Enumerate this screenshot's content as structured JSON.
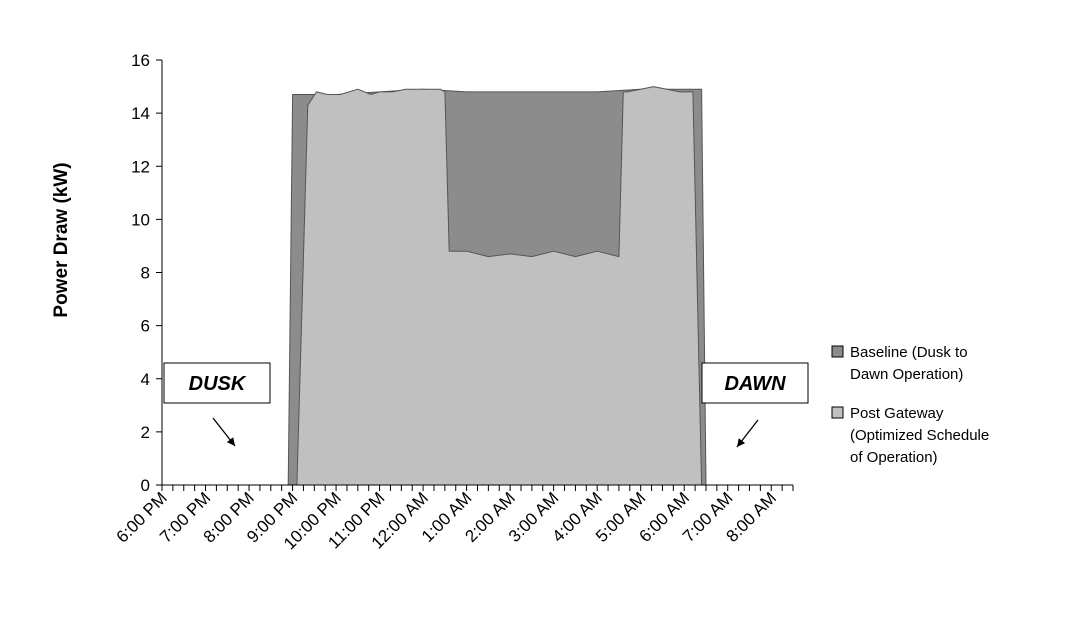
{
  "chart_data": {
    "type": "area",
    "title": "",
    "xlabel": "",
    "ylabel": "Power Draw (kW)",
    "ylim": [
      0,
      16
    ],
    "yticks": [
      0,
      2,
      4,
      6,
      8,
      10,
      12,
      14,
      16
    ],
    "x_tick_labels": [
      "6:00 PM",
      "7:00 PM",
      "8:00 PM",
      "9:00 PM",
      "10:00 PM",
      "11:00 PM",
      "12:00 AM",
      "1:00 AM",
      "2:00 AM",
      "3:00 AM",
      "4:00 AM",
      "5:00 AM",
      "6:00 AM",
      "7:00 AM",
      "8:00 AM"
    ],
    "x_unit": "hours after 6:00 PM",
    "xlim": [
      0,
      14.5
    ],
    "legend_position": "right",
    "grid": false,
    "series": [
      {
        "name": "Baseline (Dusk to Dawn Operation)",
        "color": "#8c8c8c",
        "x": [
          0,
          2.9,
          3.0,
          3.4,
          4.0,
          5.0,
          6.0,
          7.0,
          8.0,
          9.0,
          10.0,
          11.0,
          12.0,
          12.4,
          12.5,
          14.5
        ],
        "y": [
          0,
          0,
          14.7,
          14.7,
          14.7,
          14.8,
          14.9,
          14.8,
          14.8,
          14.8,
          14.8,
          14.9,
          14.9,
          14.9,
          0,
          0
        ]
      },
      {
        "name": "Post Gateway (Optimized Schedule of Operation)",
        "color": "#c0c0c0",
        "x": [
          0,
          3.1,
          3.35,
          3.55,
          3.8,
          4.1,
          4.5,
          4.8,
          5.0,
          5.3,
          5.6,
          6.0,
          6.4,
          6.5,
          6.6,
          7.0,
          7.5,
          8.0,
          8.5,
          9.0,
          9.5,
          10.0,
          10.5,
          10.6,
          10.7,
          11.0,
          11.3,
          11.6,
          11.9,
          12.2,
          12.4,
          14.5
        ],
        "y": [
          0,
          0,
          14.3,
          14.8,
          14.7,
          14.7,
          14.9,
          14.7,
          14.8,
          14.8,
          14.9,
          14.9,
          14.9,
          14.8,
          8.8,
          8.8,
          8.6,
          8.7,
          8.6,
          8.8,
          8.6,
          8.8,
          8.6,
          14.8,
          14.8,
          14.9,
          15.0,
          14.9,
          14.8,
          14.8,
          0,
          0
        ]
      }
    ],
    "annotations": [
      {
        "text": "DUSK",
        "points_to_x": 2.9
      },
      {
        "text": "DAWN",
        "points_to_x": 12.6
      }
    ]
  }
}
